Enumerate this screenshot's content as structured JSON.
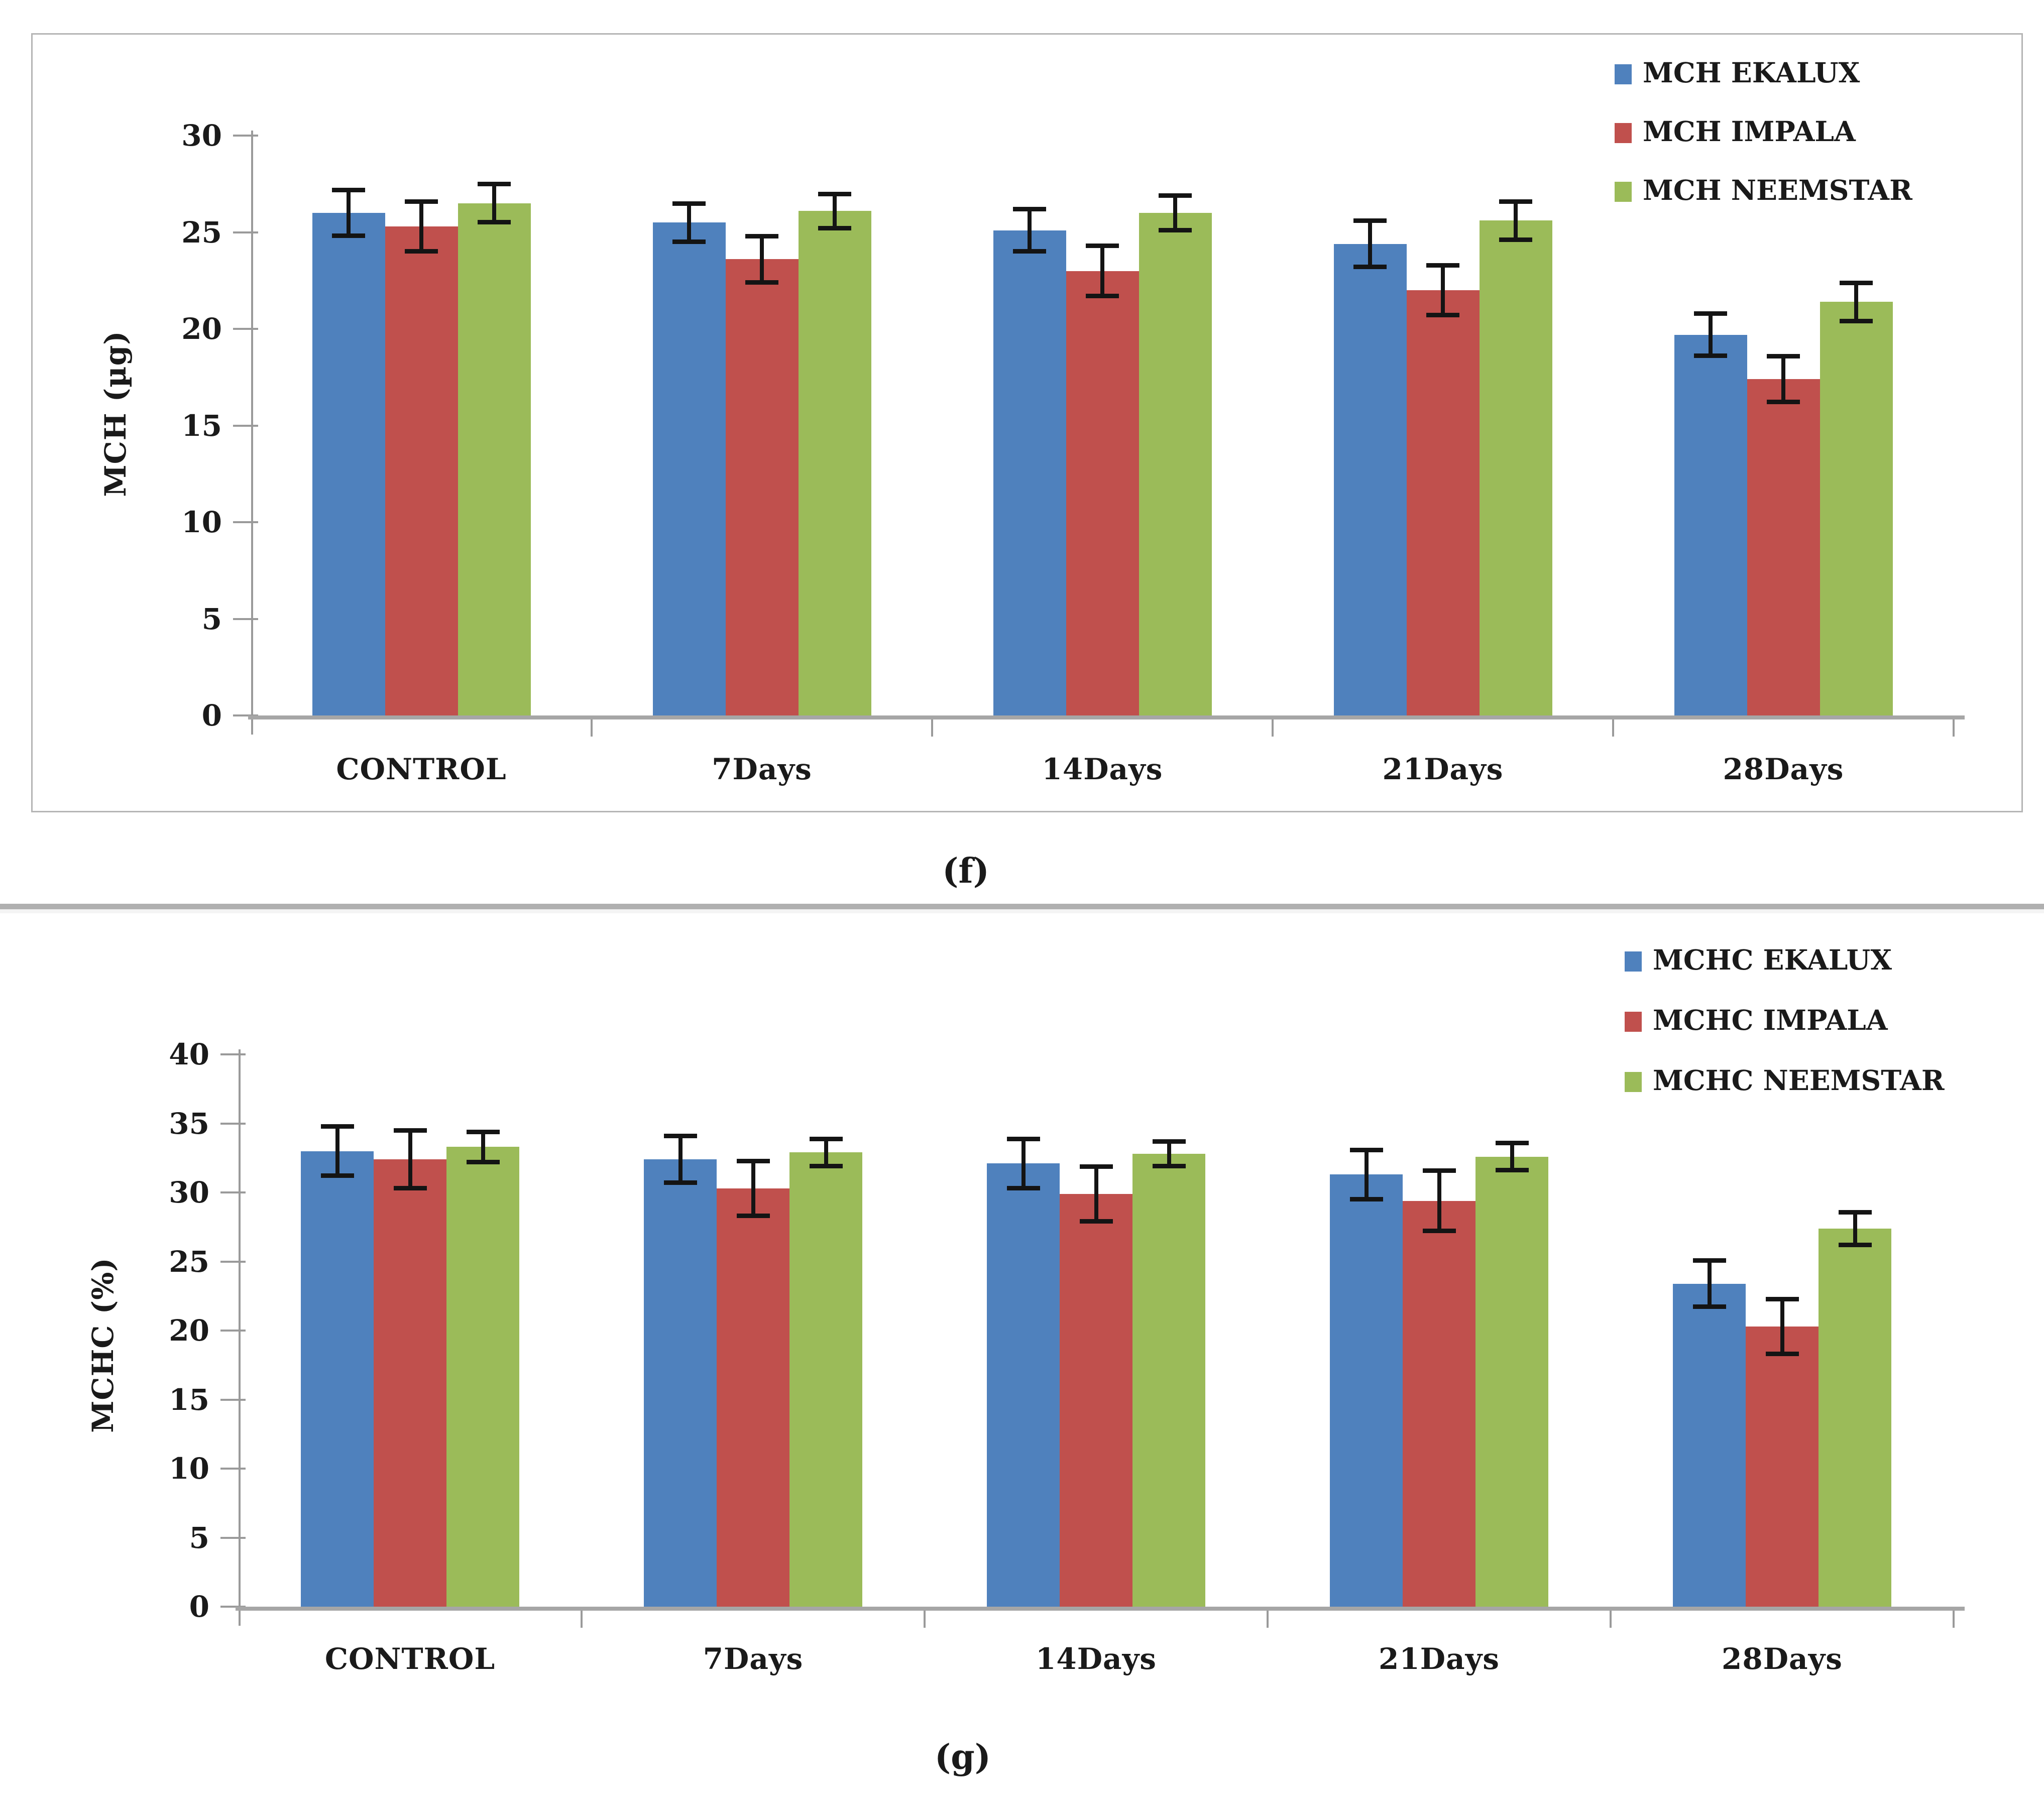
{
  "figure": {
    "background": "#ffffff",
    "divider_color": "#b0b0b0",
    "frame_color": "#b5b5b5",
    "axis_color": "#9a9a9a",
    "error_bar_color": "#141414"
  },
  "panels": [
    {
      "caption": "(f)"
    },
    {
      "caption": "(g)"
    }
  ],
  "chart_data": [
    {
      "type": "bar",
      "title": "",
      "xlabel": "",
      "ylabel": "MCH (µg)",
      "ylim": [
        0,
        30
      ],
      "yticks": [
        0,
        5,
        10,
        15,
        20,
        25,
        30
      ],
      "grid": false,
      "legend_position": "top-right",
      "categories": [
        "CONTROL",
        "7Days",
        "14Days",
        "21Days",
        "28Days"
      ],
      "series": [
        {
          "name": "MCH EKALUX",
          "color": "#4F81BD",
          "values": [
            26.0,
            25.5,
            25.1,
            24.4,
            19.7
          ],
          "errors": [
            1.2,
            1.0,
            1.1,
            1.2,
            1.1
          ]
        },
        {
          "name": "MCH IMPALA",
          "color": "#C0504D",
          "values": [
            25.3,
            23.6,
            23.0,
            22.0,
            17.4
          ],
          "errors": [
            1.3,
            1.2,
            1.3,
            1.3,
            1.2
          ]
        },
        {
          "name": "MCH NEEMSTAR",
          "color": "#9BBB59",
          "values": [
            26.5,
            26.1,
            26.0,
            25.6,
            21.4
          ],
          "errors": [
            1.0,
            0.9,
            0.9,
            1.0,
            1.0
          ]
        }
      ]
    },
    {
      "type": "bar",
      "title": "",
      "xlabel": "",
      "ylabel": "MCHC (%)",
      "ylim": [
        0,
        40
      ],
      "yticks": [
        0,
        5,
        10,
        15,
        20,
        25,
        30,
        35,
        40
      ],
      "grid": false,
      "legend_position": "top-right",
      "categories": [
        "CONTROL",
        "7Days",
        "14Days",
        "21Days",
        "28Days"
      ],
      "series": [
        {
          "name": "MCHC EKALUX",
          "color": "#4F81BD",
          "values": [
            33.0,
            32.4,
            32.1,
            31.3,
            23.4
          ],
          "errors": [
            1.8,
            1.7,
            1.8,
            1.8,
            1.7
          ]
        },
        {
          "name": "MCHC IMPALA",
          "color": "#C0504D",
          "values": [
            32.4,
            30.3,
            29.9,
            29.4,
            20.3
          ],
          "errors": [
            2.1,
            2.0,
            2.0,
            2.2,
            2.0
          ]
        },
        {
          "name": "MCHC NEEMSTAR",
          "color": "#9BBB59",
          "values": [
            33.3,
            32.9,
            32.8,
            32.6,
            27.4
          ],
          "errors": [
            1.1,
            1.0,
            0.9,
            1.0,
            1.2
          ]
        }
      ]
    }
  ]
}
